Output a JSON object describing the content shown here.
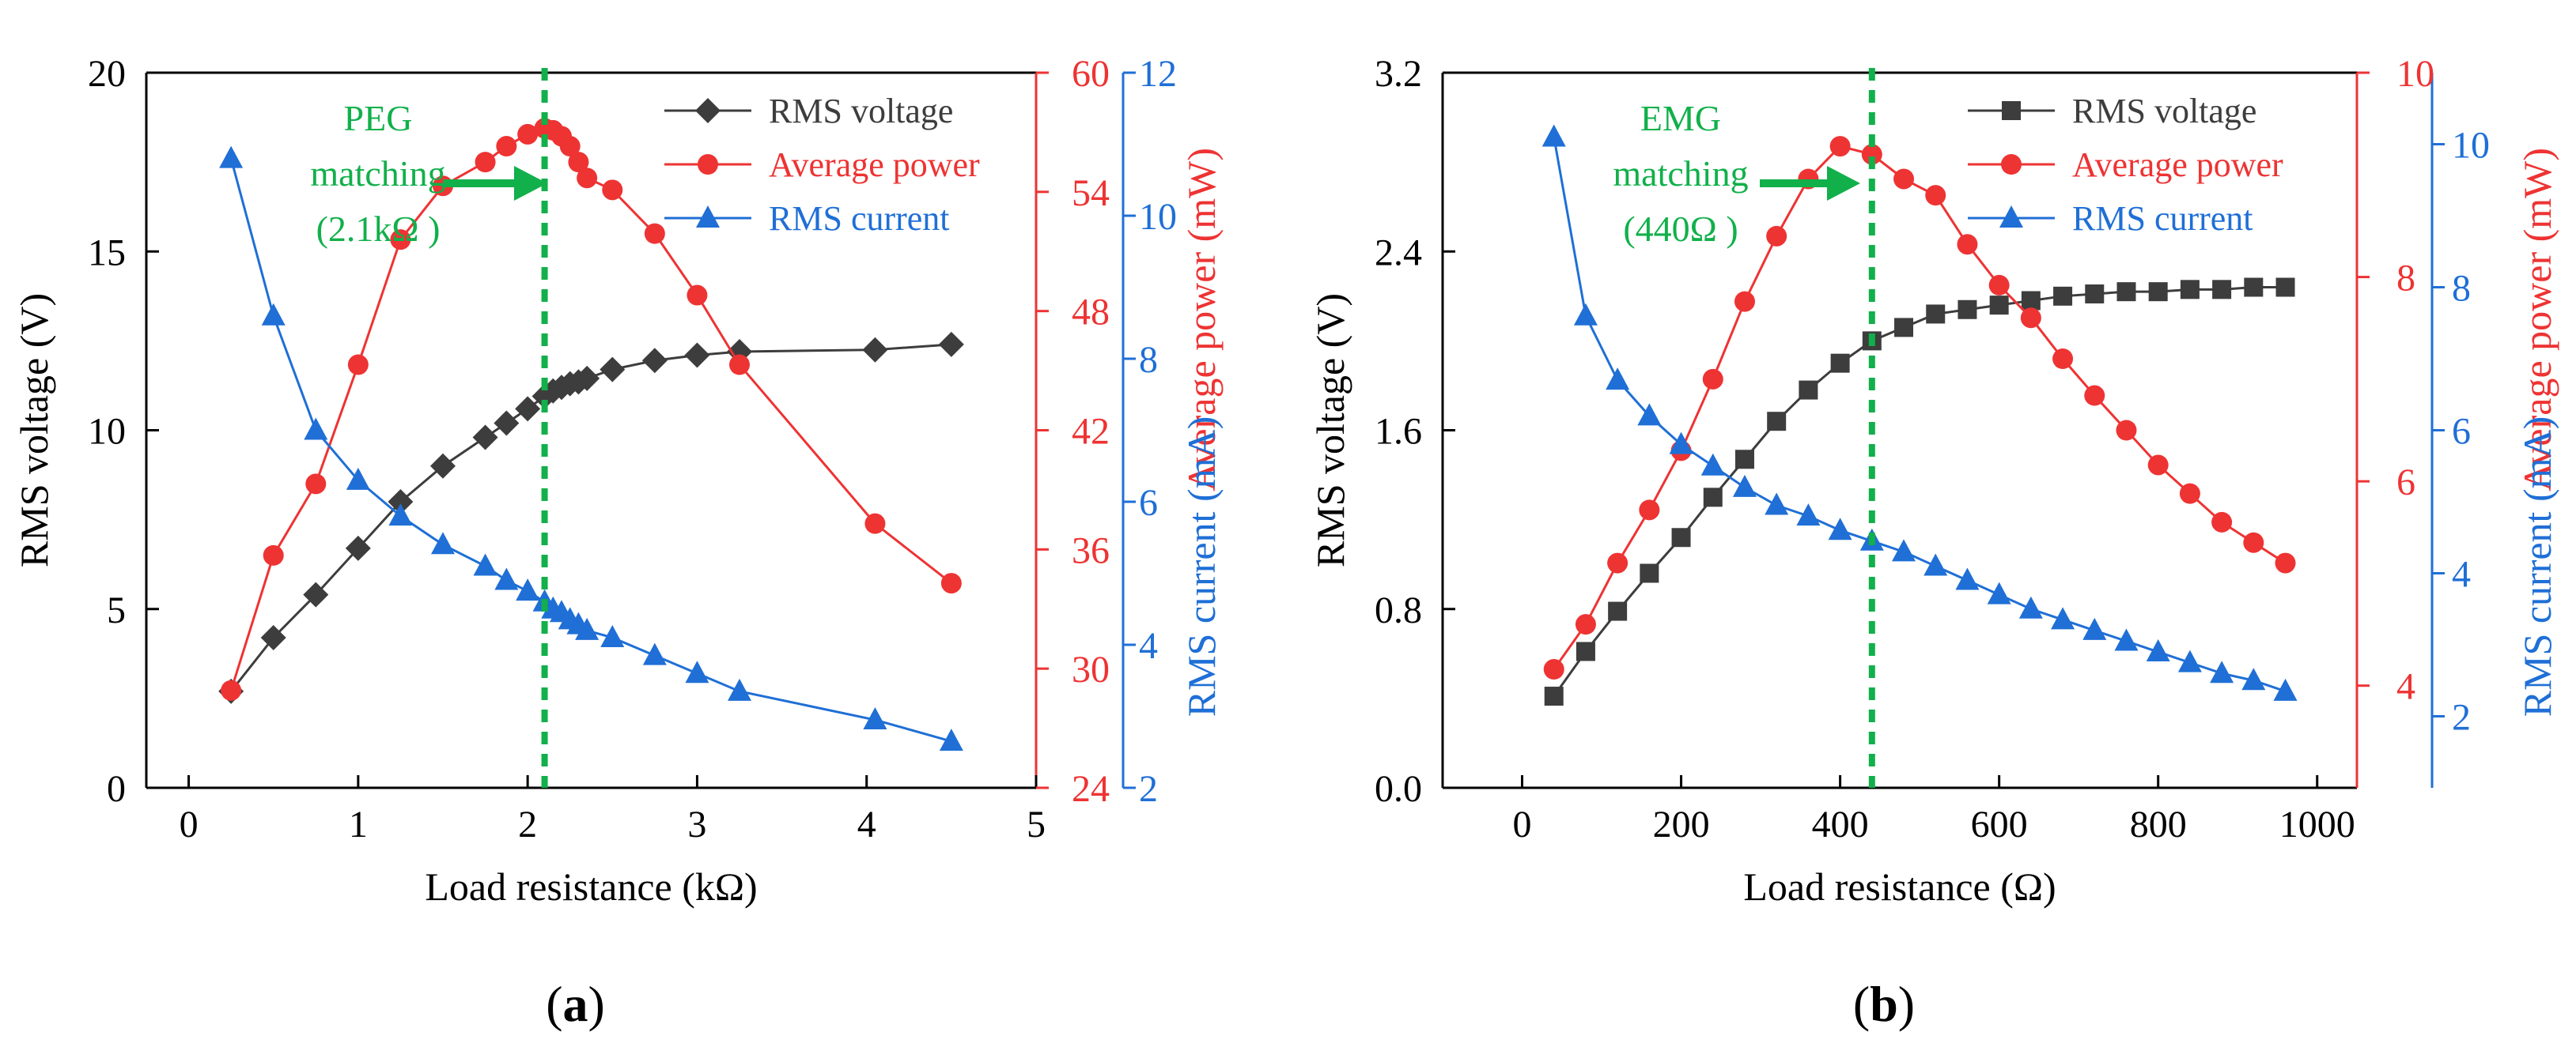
{
  "colors": {
    "voltage": "#3d3d3d",
    "power": "#ee3333",
    "current": "#1f6fd6",
    "matching": "#11b04a",
    "axis": "#000000"
  },
  "panels": [
    {
      "label_open": "(",
      "label_letter": "a",
      "label_close": ")",
      "annotation_lines": [
        "PEG",
        "matching",
        "(2.1kΩ )"
      ]
    },
    {
      "label_open": "(",
      "label_letter": "b",
      "label_close": ")",
      "annotation_lines": [
        "EMG",
        "matching",
        "(440Ω )"
      ]
    }
  ],
  "chart_data": [
    {
      "type": "line",
      "title": "",
      "xlabel": "Load resistance (kΩ)",
      "ylabel": "RMS voltage (V)",
      "y2label": "Average power (mW)",
      "y3label": "RMS current (mA)",
      "xlim": [
        -0.25,
        5
      ],
      "ylim": [
        0,
        20
      ],
      "y2lim": [
        24,
        60
      ],
      "y3lim": [
        2,
        12
      ],
      "xticks": [
        "0",
        "1",
        "2",
        "3",
        "4",
        "5"
      ],
      "yticks": [
        "0",
        "5",
        "10",
        "15",
        "20"
      ],
      "y2ticks": [
        "24",
        "30",
        "36",
        "42",
        "48",
        "54",
        "60"
      ],
      "y3ticks": [
        "2",
        "4",
        "6",
        "8",
        "10",
        "12"
      ],
      "matching_x": 2.1,
      "legend_position": "top-right",
      "grid": false,
      "series": [
        {
          "name": "RMS voltage",
          "marker": "diamond",
          "axis": "y",
          "x": [
            0.25,
            0.5,
            0.75,
            1.0,
            1.25,
            1.5,
            1.75,
            1.875,
            2.0,
            2.1,
            2.15,
            2.2,
            2.25,
            2.3,
            2.35,
            2.5,
            2.75,
            3.0,
            3.25,
            4.05,
            4.5
          ],
          "y": [
            2.7,
            4.2,
            5.4,
            6.7,
            8.0,
            9.0,
            9.8,
            10.2,
            10.6,
            10.95,
            11.1,
            11.2,
            11.3,
            11.35,
            11.45,
            11.7,
            11.95,
            12.1,
            12.2,
            12.25,
            12.4
          ]
        },
        {
          "name": "Average power",
          "marker": "circle",
          "axis": "y2",
          "x": [
            0.25,
            0.5,
            0.75,
            1.0,
            1.25,
            1.5,
            1.75,
            1.875,
            2.0,
            2.1,
            2.15,
            2.2,
            2.25,
            2.3,
            2.35,
            2.5,
            2.75,
            3.0,
            3.25,
            4.05,
            4.5
          ],
          "y": [
            28.9,
            35.7,
            39.3,
            45.3,
            51.6,
            54.3,
            55.5,
            56.3,
            56.9,
            57.2,
            57.1,
            56.8,
            56.3,
            55.5,
            54.7,
            54.1,
            51.9,
            48.8,
            45.3,
            37.3,
            34.3
          ]
        },
        {
          "name": "RMS current",
          "marker": "triangle",
          "axis": "y3",
          "x": [
            0.25,
            0.5,
            0.75,
            1.0,
            1.25,
            1.5,
            1.75,
            1.875,
            2.0,
            2.1,
            2.15,
            2.2,
            2.25,
            2.3,
            2.35,
            2.5,
            2.75,
            3.0,
            3.25,
            4.05,
            4.5
          ],
          "y": [
            10.8,
            8.6,
            7.0,
            6.3,
            5.8,
            5.4,
            5.1,
            4.9,
            4.75,
            4.6,
            4.5,
            4.45,
            4.35,
            4.28,
            4.2,
            4.1,
            3.85,
            3.6,
            3.35,
            2.95,
            2.65
          ]
        }
      ]
    },
    {
      "type": "line",
      "title": "",
      "xlabel": "Load resistance (Ω)",
      "ylabel": "RMS voltage (V)",
      "y2label": "Average power (mW)",
      "y3label": "RMS current (mA)",
      "xlim": [
        -100,
        1050
      ],
      "ylim": [
        0,
        3.2
      ],
      "y2lim": [
        3.0,
        10
      ],
      "y3lim": [
        1.0,
        11.0
      ],
      "xticks": [
        "0",
        "200",
        "400",
        "600",
        "800",
        "1000"
      ],
      "yticks": [
        "0.0",
        "0.8",
        "1.6",
        "2.4",
        "3.2"
      ],
      "y2ticks": [
        "4",
        "6",
        "8",
        "10"
      ],
      "y3ticks": [
        "2",
        "4",
        "6",
        "8",
        "10"
      ],
      "matching_x": 440,
      "legend_position": "top-right",
      "grid": false,
      "series": [
        {
          "name": "RMS voltage",
          "marker": "square",
          "axis": "y",
          "x": [
            40,
            80,
            120,
            160,
            200,
            240,
            280,
            320,
            360,
            400,
            440,
            480,
            520,
            560,
            600,
            640,
            680,
            720,
            760,
            800,
            840,
            880,
            920,
            960
          ],
          "y": [
            0.41,
            0.61,
            0.79,
            0.96,
            1.12,
            1.3,
            1.47,
            1.64,
            1.78,
            1.9,
            2.0,
            2.06,
            2.12,
            2.14,
            2.16,
            2.18,
            2.2,
            2.21,
            2.22,
            2.22,
            2.23,
            2.23,
            2.24,
            2.24
          ]
        },
        {
          "name": "Average power",
          "marker": "circle",
          "axis": "y2",
          "x": [
            40,
            80,
            120,
            160,
            200,
            240,
            280,
            320,
            360,
            400,
            440,
            480,
            520,
            560,
            600,
            640,
            680,
            720,
            760,
            800,
            840,
            880,
            920,
            960
          ],
          "y": [
            4.16,
            4.6,
            5.2,
            5.72,
            6.3,
            7.0,
            7.76,
            8.4,
            8.96,
            9.28,
            9.2,
            8.96,
            8.8,
            8.32,
            7.92,
            7.6,
            7.2,
            6.84,
            6.5,
            6.16,
            5.88,
            5.6,
            5.4,
            5.2
          ]
        },
        {
          "name": "RMS current",
          "marker": "triangle",
          "axis": "y3",
          "x": [
            40,
            80,
            120,
            160,
            200,
            240,
            280,
            320,
            360,
            400,
            440,
            480,
            520,
            560,
            600,
            640,
            680,
            720,
            760,
            800,
            840,
            880,
            920,
            960
          ],
          "y": [
            10.1,
            7.6,
            6.7,
            6.2,
            5.8,
            5.5,
            5.2,
            4.95,
            4.8,
            4.6,
            4.45,
            4.3,
            4.1,
            3.9,
            3.7,
            3.5,
            3.35,
            3.2,
            3.05,
            2.9,
            2.75,
            2.6,
            2.5,
            2.35
          ]
        }
      ]
    }
  ]
}
